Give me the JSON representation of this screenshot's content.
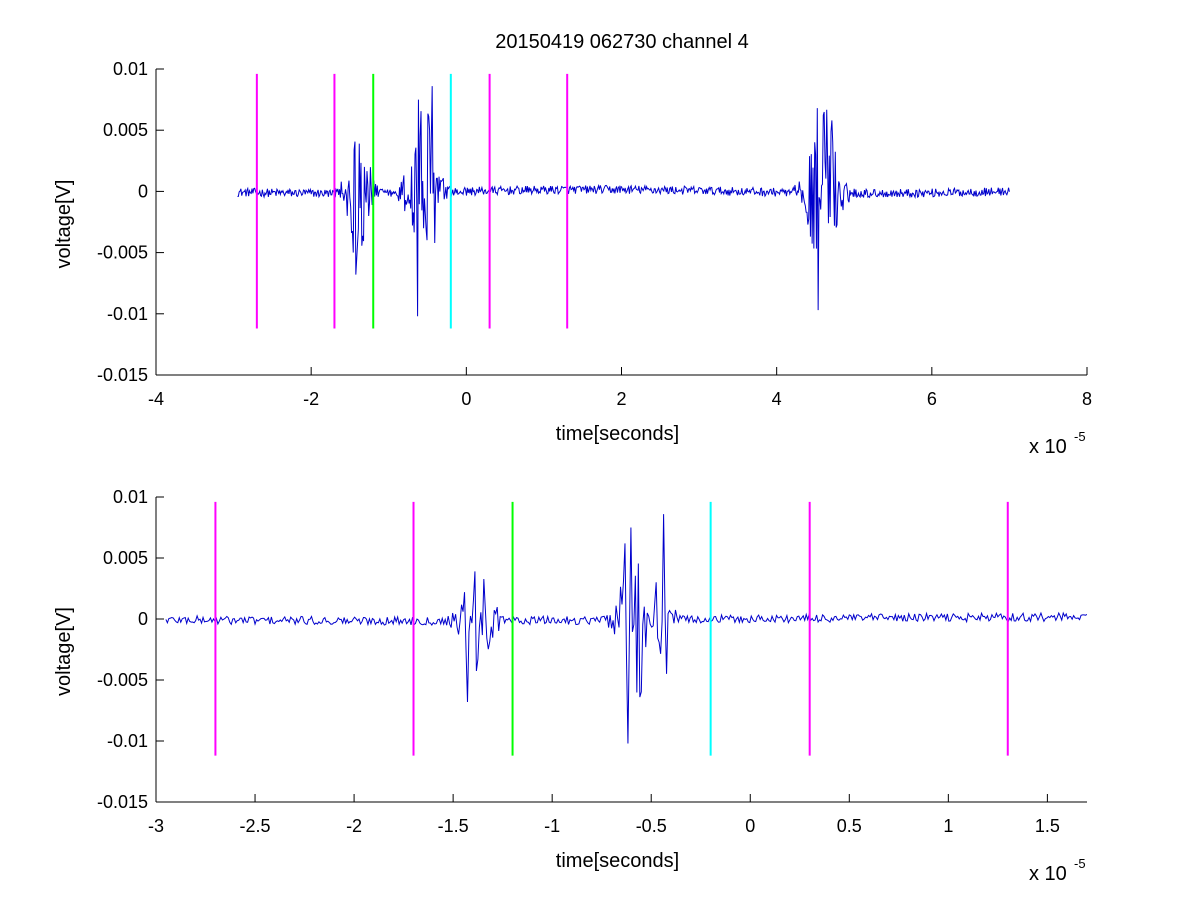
{
  "figure": {
    "title": "20150419 062730 channel 4",
    "background": "#ffffff"
  },
  "colors": {
    "trace": "#0000cc",
    "marker_magenta": "#ff00ff",
    "marker_green": "#00ff00",
    "marker_cyan": "#00ffff",
    "axes": "#000000"
  },
  "chart_data": [
    {
      "type": "line",
      "title": "20150419 062730 channel 4",
      "xlabel": "time[seconds]",
      "ylabel": "voltage[V]",
      "x_exponent_label": "x 10",
      "x_exponent": "-5",
      "x_unit_scale": 1e-05,
      "xlim": [
        -4,
        8
      ],
      "ylim": [
        -0.015,
        0.01
      ],
      "xticks": [
        -4,
        -2,
        0,
        2,
        4,
        6,
        8
      ],
      "xtick_labels": [
        "-4",
        "-2",
        "0",
        "2",
        "4",
        "6",
        "8"
      ],
      "yticks": [
        -0.015,
        -0.01,
        -0.005,
        0,
        0.005,
        0.01
      ],
      "ytick_labels": [
        "-0.015",
        "-0.01",
        "-0.005",
        "0",
        "0.005",
        "0.01"
      ],
      "grid": false,
      "series": [
        {
          "color": "#0000cc",
          "x_start": -2.95,
          "x_end": 7.0,
          "baseline_noise": 0.00035,
          "bursts": [
            {
              "center": -1.4,
              "amplitude": 0.0065,
              "width": 0.25
            },
            {
              "center": -0.55,
              "amplitude": 0.009,
              "width": 0.3
            },
            {
              "center": 4.6,
              "amplitude": 0.0085,
              "width": 0.3
            }
          ],
          "peaks": [
            {
              "x": -1.42,
              "y": -0.0068
            },
            {
              "x": -1.38,
              "y": 0.0039
            },
            {
              "x": -0.63,
              "y": -0.0102
            },
            {
              "x": -0.62,
              "y": 0.0075
            },
            {
              "x": -0.44,
              "y": 0.0086
            },
            {
              "x": 4.52,
              "y": 0.0068
            },
            {
              "x": 4.53,
              "y": -0.0097
            },
            {
              "x": 4.71,
              "y": 0.0058
            }
          ]
        }
      ],
      "markers": [
        {
          "x": -2.7,
          "color": "#ff00ff",
          "y_range": [
            -0.0112,
            0.0096
          ]
        },
        {
          "x": -1.7,
          "color": "#ff00ff",
          "y_range": [
            -0.0112,
            0.0096
          ]
        },
        {
          "x": -1.2,
          "color": "#00ff00",
          "y_range": [
            -0.0112,
            0.0096
          ]
        },
        {
          "x": -0.2,
          "color": "#00ffff",
          "y_range": [
            -0.0112,
            0.0096
          ]
        },
        {
          "x": 0.3,
          "color": "#ff00ff",
          "y_range": [
            -0.0112,
            0.0096
          ]
        },
        {
          "x": 1.3,
          "color": "#ff00ff",
          "y_range": [
            -0.0112,
            0.0096
          ]
        }
      ]
    },
    {
      "type": "line",
      "title": "",
      "xlabel": "time[seconds]",
      "ylabel": "voltage[V]",
      "x_exponent_label": "x 10",
      "x_exponent": "-5",
      "x_unit_scale": 1e-05,
      "xlim": [
        -3.0,
        1.7
      ],
      "ylim": [
        -0.015,
        0.01
      ],
      "xticks": [
        -3,
        -2.5,
        -2,
        -1.5,
        -1,
        -0.5,
        0,
        0.5,
        1,
        1.5
      ],
      "xtick_labels": [
        "-3",
        "-2.5",
        "-2",
        "-1.5",
        "-1",
        "-0.5",
        "0",
        "0.5",
        "1",
        "1.5"
      ],
      "yticks": [
        -0.015,
        -0.01,
        -0.005,
        0,
        0.005,
        0.01
      ],
      "ytick_labels": [
        "-0.015",
        "-0.01",
        "-0.005",
        "0",
        "0.005",
        "0.01"
      ],
      "grid": false,
      "series": [
        {
          "color": "#0000cc",
          "x_start": -2.95,
          "x_end": 1.7,
          "baseline_noise": 0.00035,
          "bursts": [
            {
              "center": -1.38,
              "amplitude": 0.0055,
              "width": 0.12
            },
            {
              "center": -0.55,
              "amplitude": 0.008,
              "width": 0.16
            }
          ],
          "peaks": [
            {
              "x": -1.44,
              "y": 0.0022
            },
            {
              "x": -1.43,
              "y": -0.0068
            },
            {
              "x": -1.39,
              "y": 0.0039
            },
            {
              "x": -0.63,
              "y": 0.0062
            },
            {
              "x": -0.62,
              "y": -0.0102
            },
            {
              "x": -0.6,
              "y": 0.0075
            },
            {
              "x": -0.44,
              "y": 0.0086
            },
            {
              "x": -0.42,
              "y": -0.0045
            }
          ]
        }
      ],
      "markers": [
        {
          "x": -2.7,
          "color": "#ff00ff",
          "y_range": [
            -0.0112,
            0.0096
          ]
        },
        {
          "x": -1.7,
          "color": "#ff00ff",
          "y_range": [
            -0.0112,
            0.0096
          ]
        },
        {
          "x": -1.2,
          "color": "#00ff00",
          "y_range": [
            -0.0112,
            0.0096
          ]
        },
        {
          "x": -0.2,
          "color": "#00ffff",
          "y_range": [
            -0.0112,
            0.0096
          ]
        },
        {
          "x": 0.3,
          "color": "#ff00ff",
          "y_range": [
            -0.0112,
            0.0096
          ]
        },
        {
          "x": 1.3,
          "color": "#ff00ff",
          "y_range": [
            -0.0112,
            0.0096
          ]
        }
      ]
    }
  ]
}
